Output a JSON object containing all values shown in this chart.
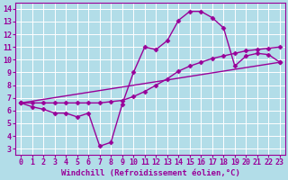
{
  "background_color": "#b2dde8",
  "grid_color": "#ffffff",
  "line_color": "#990099",
  "marker": "D",
  "markersize": 2.5,
  "linewidth": 1.0,
  "xlabel": "Windchill (Refroidissement éolien,°C)",
  "xlabel_fontsize": 6.5,
  "tick_fontsize": 6,
  "xlim": [
    -0.5,
    23.5
  ],
  "ylim": [
    2.5,
    14.5
  ],
  "xticks": [
    0,
    1,
    2,
    3,
    4,
    5,
    6,
    7,
    8,
    9,
    10,
    11,
    12,
    13,
    14,
    15,
    16,
    17,
    18,
    19,
    20,
    21,
    22,
    23
  ],
  "yticks": [
    3,
    4,
    5,
    6,
    7,
    8,
    9,
    10,
    11,
    12,
    13,
    14
  ],
  "series1_x": [
    0,
    1,
    2,
    3,
    4,
    5,
    6,
    7,
    8,
    9,
    10,
    11,
    12,
    13,
    14,
    15,
    16,
    17,
    18,
    19,
    20,
    21,
    22,
    23
  ],
  "series1_y": [
    6.6,
    6.3,
    6.1,
    5.8,
    5.8,
    5.5,
    5.8,
    3.2,
    3.5,
    6.5,
    9.0,
    11.0,
    10.8,
    11.5,
    13.1,
    13.8,
    13.8,
    13.3,
    12.5,
    9.5,
    10.3,
    10.5,
    10.4,
    9.8
  ],
  "series2_x": [
    0,
    1,
    2,
    3,
    4,
    5,
    6,
    7,
    8,
    9,
    10,
    11,
    12,
    13,
    14,
    15,
    16,
    17,
    18,
    19,
    20,
    21,
    22,
    23
  ],
  "series2_y": [
    6.6,
    6.6,
    6.6,
    6.6,
    6.6,
    6.6,
    6.6,
    6.6,
    6.7,
    6.8,
    7.1,
    7.5,
    8.0,
    8.5,
    9.1,
    9.5,
    9.8,
    10.1,
    10.3,
    10.5,
    10.7,
    10.8,
    10.9,
    11.0
  ],
  "series3_x": [
    0,
    23
  ],
  "series3_y": [
    6.6,
    9.8
  ]
}
